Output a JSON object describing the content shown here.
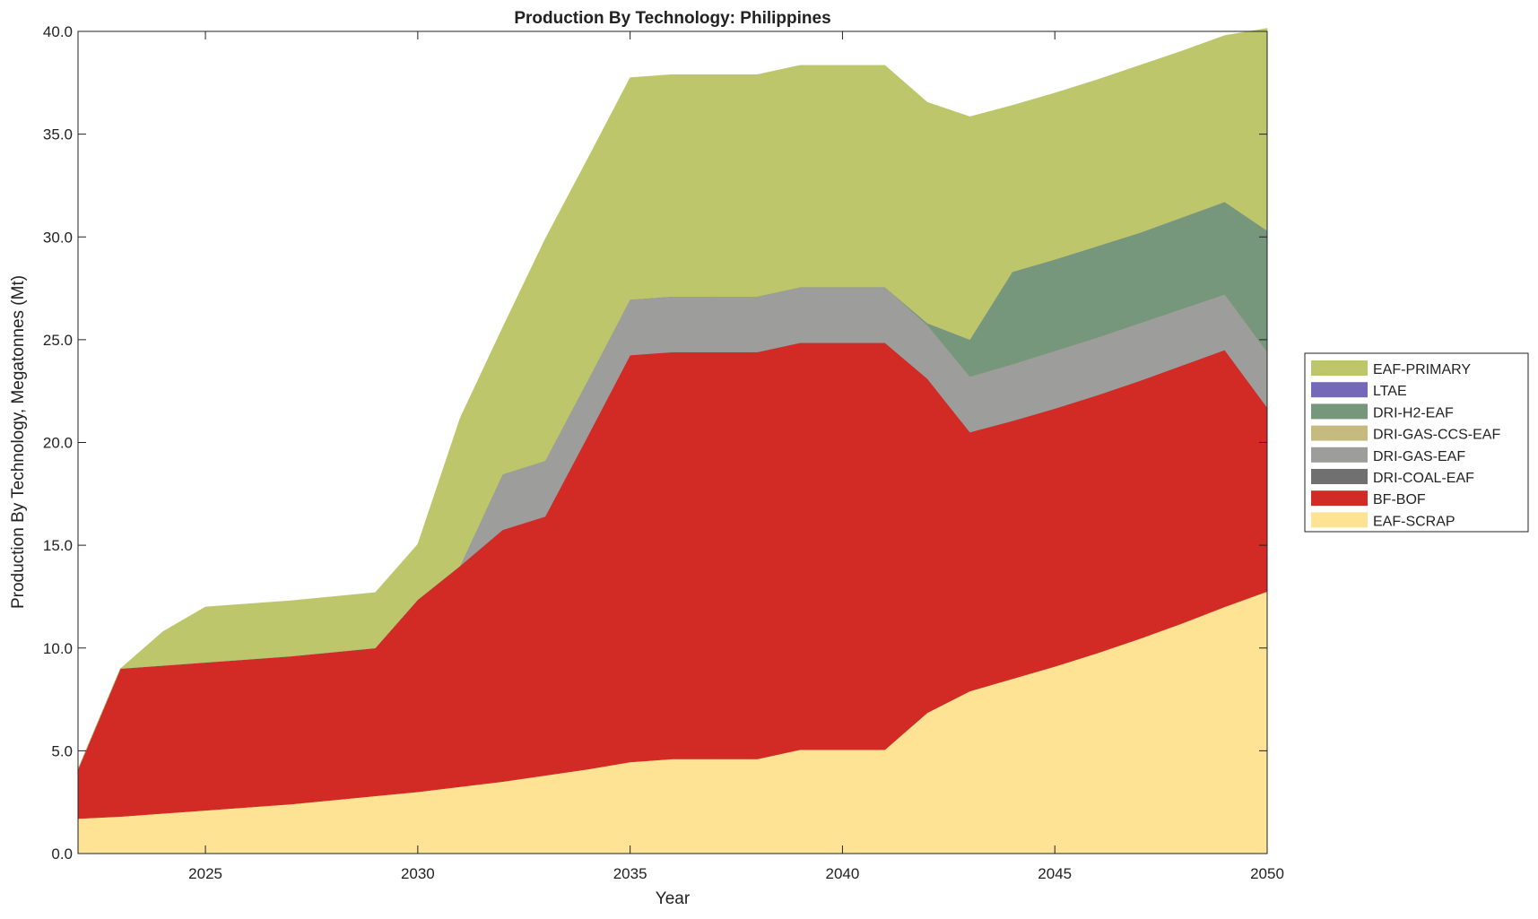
{
  "chart_data": {
    "type": "area",
    "stacked": true,
    "title": "Production By Technology: Philippines",
    "xlabel": "Year",
    "ylabel": "Production By Technology, Megatonnes (Mt)",
    "xlim": [
      2022,
      2050
    ],
    "ylim": [
      0,
      40
    ],
    "xticks": [
      "2025",
      "2030",
      "2035",
      "2040",
      "2045",
      "2050"
    ],
    "yticks": [
      "0.0",
      "5.0",
      "10.0",
      "15.0",
      "20.0",
      "25.0",
      "30.0",
      "35.0",
      "40.0"
    ],
    "grid": false,
    "legend_position": "right",
    "x": [
      2022,
      2023,
      2024,
      2025,
      2026,
      2027,
      2028,
      2029,
      2030,
      2031,
      2032,
      2033,
      2034,
      2035,
      2036,
      2037,
      2038,
      2039,
      2040,
      2041,
      2042,
      2043,
      2044,
      2045,
      2046,
      2047,
      2048,
      2049,
      2050
    ],
    "series": [
      {
        "name": "EAF-SCRAP",
        "color": "#fde393",
        "values": [
          1.7,
          1.8,
          1.95,
          2.1,
          2.25,
          2.4,
          2.6,
          2.8,
          3.0,
          3.25,
          3.5,
          3.8,
          4.1,
          4.45,
          4.6,
          4.6,
          4.6,
          5.05,
          5.05,
          5.05,
          6.85,
          7.9,
          8.5,
          9.1,
          9.75,
          10.45,
          11.2,
          12.0,
          12.75
        ]
      },
      {
        "name": "BF-BOF",
        "color": "#d22b26",
        "values": [
          2.4,
          7.2,
          7.2,
          7.2,
          7.2,
          7.2,
          7.2,
          7.2,
          9.35,
          10.75,
          12.25,
          12.6,
          16.2,
          19.8,
          19.8,
          19.8,
          19.8,
          19.8,
          19.8,
          19.8,
          16.25,
          12.6,
          12.55,
          12.55,
          12.55,
          12.55,
          12.55,
          12.5,
          8.95
        ]
      },
      {
        "name": "DRI-COAL-EAF",
        "color": "#707070",
        "values": [
          0,
          0,
          0,
          0,
          0,
          0,
          0,
          0,
          0,
          0,
          0,
          0,
          0,
          0,
          0,
          0,
          0,
          0,
          0,
          0,
          0,
          0,
          0,
          0,
          0,
          0,
          0,
          0,
          0
        ]
      },
      {
        "name": "DRI-GAS-EAF",
        "color": "#9d9d9b",
        "values": [
          0,
          0,
          0,
          0,
          0,
          0,
          0,
          0,
          0,
          0,
          2.7,
          2.7,
          2.7,
          2.7,
          2.7,
          2.7,
          2.7,
          2.7,
          2.7,
          2.7,
          2.6,
          2.7,
          2.75,
          2.8,
          2.8,
          2.8,
          2.75,
          2.7,
          2.7
        ]
      },
      {
        "name": "DRI-GAS-CCS-EAF",
        "color": "#c6bb7f",
        "values": [
          0,
          0,
          0,
          0,
          0,
          0,
          0,
          0,
          0,
          0,
          0,
          0,
          0,
          0,
          0,
          0,
          0,
          0,
          0,
          0,
          0,
          0,
          0,
          0,
          0,
          0,
          0,
          0,
          0
        ]
      },
      {
        "name": "DRI-H2-EAF",
        "color": "#76977c",
        "values": [
          0,
          0,
          0,
          0,
          0,
          0,
          0,
          0,
          0,
          0,
          0,
          0,
          0,
          0,
          0,
          0,
          0,
          0,
          0,
          0,
          0.1,
          1.8,
          4.5,
          4.45,
          4.45,
          4.4,
          4.45,
          4.5,
          5.9
        ]
      },
      {
        "name": "LTAE",
        "color": "#7468b8",
        "values": [
          0,
          0,
          0,
          0,
          0,
          0,
          0,
          0,
          0,
          0,
          0,
          0,
          0,
          0,
          0,
          0,
          0,
          0,
          0,
          0,
          0,
          0,
          0,
          0,
          0,
          0,
          0,
          0,
          0
        ]
      },
      {
        "name": "EAF-PRIMARY",
        "color": "#bdc66b",
        "values": [
          0,
          0,
          1.65,
          2.7,
          2.7,
          2.7,
          2.7,
          2.7,
          2.7,
          7.2,
          7.15,
          10.8,
          10.8,
          10.8,
          10.8,
          10.8,
          10.8,
          10.8,
          10.8,
          10.8,
          10.75,
          10.85,
          8.1,
          8.1,
          8.1,
          8.15,
          8.1,
          8.1,
          9.85
        ]
      }
    ],
    "legend_order": [
      "EAF-PRIMARY",
      "LTAE",
      "DRI-H2-EAF",
      "DRI-GAS-CCS-EAF",
      "DRI-GAS-EAF",
      "DRI-COAL-EAF",
      "BF-BOF",
      "EAF-SCRAP"
    ]
  }
}
